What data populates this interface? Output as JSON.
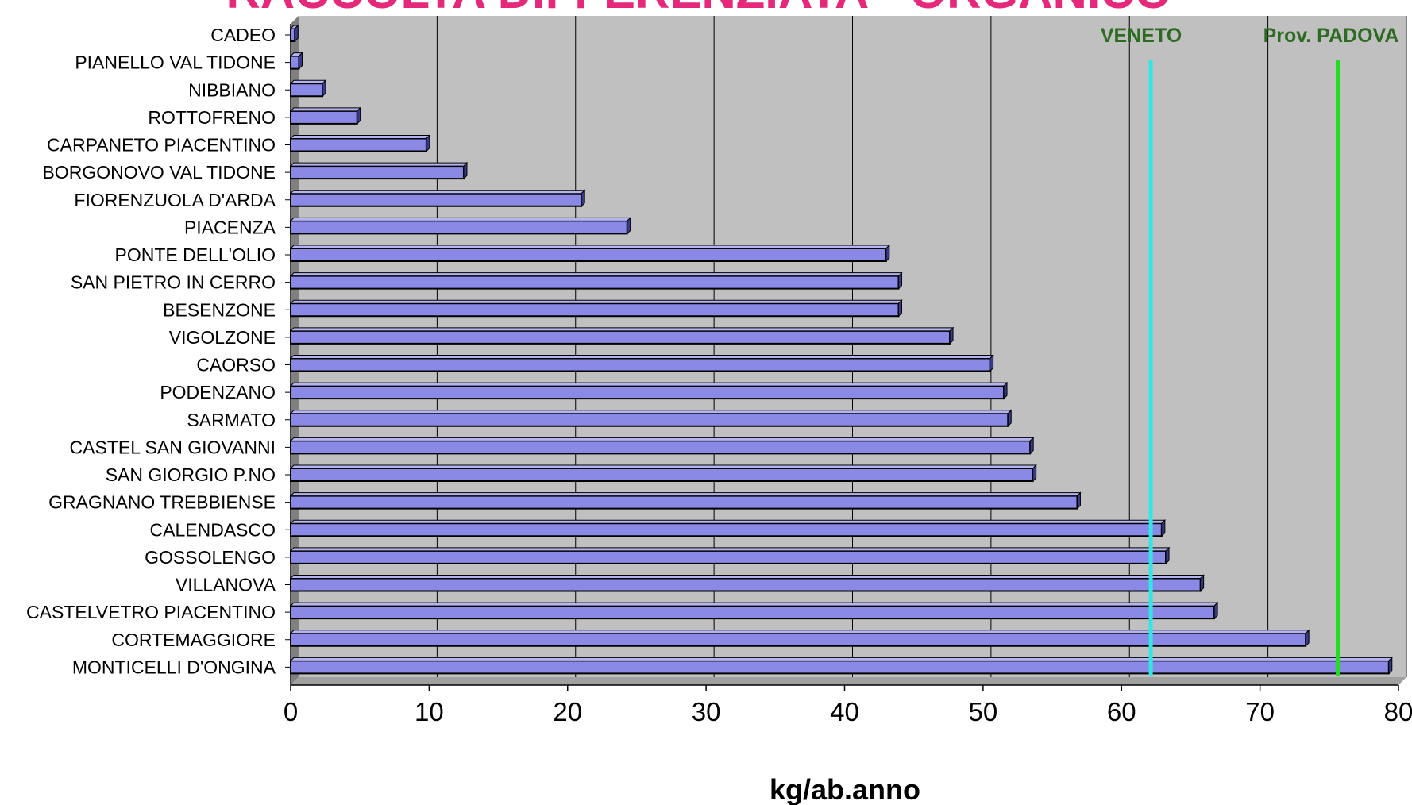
{
  "chart_data": {
    "type": "bar",
    "orientation": "horizontal",
    "title": "RACCOLTA DIFFERENZIATA - ORGANICO",
    "xlabel": "kg/ab.anno",
    "ylabel": "",
    "xlim": [
      0,
      80
    ],
    "xticks": [
      0,
      10,
      20,
      30,
      40,
      50,
      60,
      70,
      80
    ],
    "grid": true,
    "categories": [
      "CADEO",
      "PIANELLO VAL TIDONE",
      "NIBBIANO",
      "ROTTOFRENO",
      "CARPANETO PIACENTINO",
      "BORGONOVO VAL TIDONE",
      "FIORENZUOLA D'ARDA",
      "PIACENZA",
      "PONTE DELL'OLIO",
      "SAN PIETRO IN CERRO",
      "BESENZONE",
      "VIGOLZONE",
      "CAORSO",
      "PODENZANO",
      "SARMATO",
      "CASTEL SAN GIOVANNI",
      "SAN GIORGIO P.NO",
      "GRAGNANO TREBBIENSE",
      "CALENDASCO",
      "GOSSOLENGO",
      "VILLANOVA",
      "CASTELVETRO PIACENTINO",
      "CORTEMAGGIORE",
      "MONTICELLI D'ONGINA"
    ],
    "values": [
      0.3,
      0.6,
      2.3,
      4.8,
      9.8,
      12.5,
      21.0,
      24.3,
      43.0,
      43.9,
      43.9,
      47.6,
      50.5,
      51.5,
      51.8,
      53.4,
      53.6,
      56.8,
      62.9,
      63.2,
      65.7,
      66.7,
      73.3,
      79.3
    ],
    "reference_lines": [
      {
        "label": "VENETO",
        "value": 62.0,
        "color": "#33e6e6"
      },
      {
        "label": "Prov. PADOVA",
        "value": 75.5,
        "color": "#22dd22"
      }
    ],
    "colors": {
      "bar_fill": "#8a8ae6",
      "bar_edge": "#000000",
      "plot_background": "#c0c0c0",
      "floor": "#808080",
      "label_green": "#2e6b22",
      "title_pink": "#e6287a"
    }
  }
}
